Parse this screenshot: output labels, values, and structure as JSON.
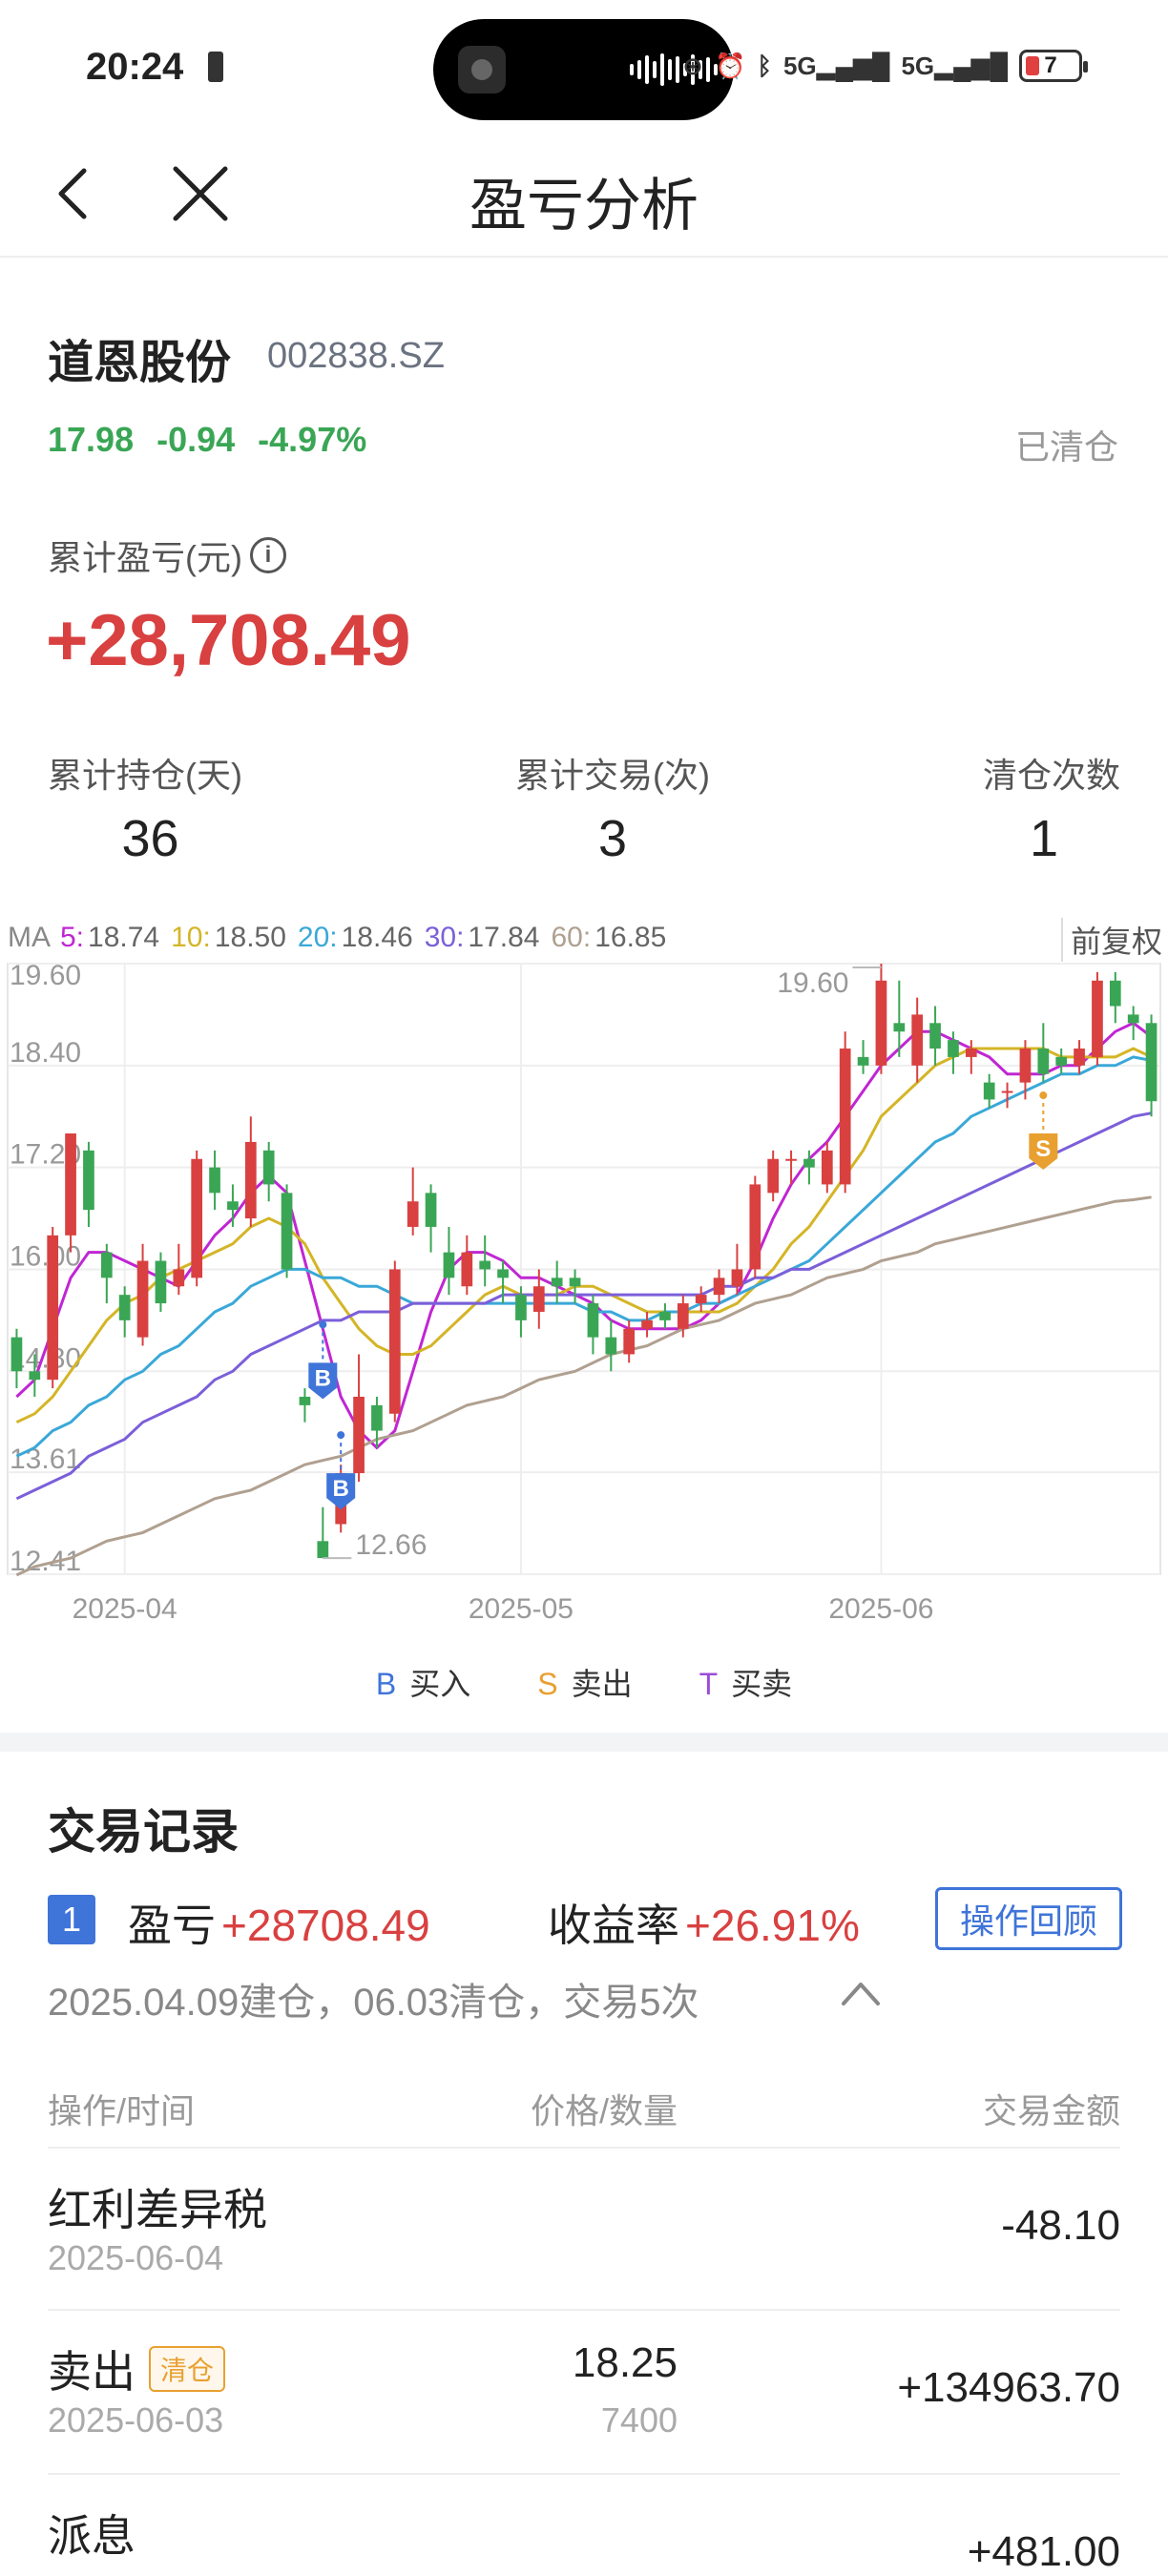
{
  "status": {
    "time": "20:24",
    "battery": "7",
    "signal1": "5G",
    "signal2": "5G"
  },
  "nav": {
    "title": "盈亏分析"
  },
  "stock": {
    "name": "道恩股份",
    "code": "002838.SZ",
    "price": "17.98",
    "change": "-0.94",
    "change_pct": "-4.97%",
    "state": "已清仓"
  },
  "summary": {
    "cum_pl_label": "累计盈亏(元)",
    "cum_pl_value": "+28,708.49",
    "hold_days_label": "累计持仓(天)",
    "hold_days": "36",
    "trades_label": "累计交易(次)",
    "trades": "3",
    "clear_label": "清仓次数",
    "clears": "1"
  },
  "chart_data": {
    "type": "candlestick",
    "adjust_label": "前复权",
    "ma_legend": [
      {
        "label": "MA",
        "value": ""
      },
      {
        "label": "5:",
        "value": "18.74",
        "color": "#c026d3"
      },
      {
        "label": "10:",
        "value": "18.50",
        "color": "#d4b526"
      },
      {
        "label": "20:",
        "value": "18.46",
        "color": "#3aa8d8"
      },
      {
        "label": "30:",
        "value": "17.84",
        "color": "#7b5fd9"
      },
      {
        "label": "60:",
        "value": "16.85",
        "color": "#b0a090"
      }
    ],
    "y_ticks": [
      "19.60",
      "18.40",
      "17.20",
      "16.00",
      "14.80",
      "13.61",
      "12.41"
    ],
    "ylim": [
      12.41,
      19.6
    ],
    "x_ticks": [
      "2025-04",
      "2025-05",
      "2025-06"
    ],
    "high_label": "19.60",
    "low_label": "12.66",
    "up_color": "#d94040",
    "down_color": "#3aa655",
    "candles": [
      [
        15.2,
        14.8,
        15.3,
        14.6
      ],
      [
        14.8,
        14.7,
        15.0,
        14.5
      ],
      [
        14.7,
        16.4,
        16.5,
        14.6
      ],
      [
        16.4,
        17.6,
        17.6,
        16.2
      ],
      [
        17.4,
        16.7,
        17.5,
        16.5
      ],
      [
        16.2,
        15.9,
        16.3,
        15.6
      ],
      [
        15.7,
        15.4,
        15.8,
        15.2
      ],
      [
        15.2,
        16.1,
        16.3,
        15.1
      ],
      [
        16.1,
        15.6,
        16.2,
        15.5
      ],
      [
        15.8,
        16.0,
        16.3,
        15.7
      ],
      [
        15.9,
        17.3,
        17.4,
        15.8
      ],
      [
        17.2,
        16.9,
        17.4,
        16.7
      ],
      [
        16.8,
        16.7,
        17.0,
        16.5
      ],
      [
        16.6,
        17.5,
        17.8,
        16.5
      ],
      [
        17.4,
        17.0,
        17.5,
        16.8
      ],
      [
        16.9,
        16.0,
        17.0,
        15.9
      ],
      [
        14.5,
        14.4,
        14.6,
        14.2
      ],
      [
        12.8,
        12.6,
        13.2,
        12.6
      ],
      [
        13.0,
        13.6,
        13.7,
        12.9
      ],
      [
        13.6,
        14.5,
        15.0,
        13.5
      ],
      [
        14.4,
        14.1,
        14.5,
        13.9
      ],
      [
        14.3,
        16.0,
        16.1,
        14.2
      ],
      [
        16.5,
        16.8,
        17.2,
        16.4
      ],
      [
        16.9,
        16.5,
        17.0,
        16.2
      ],
      [
        16.2,
        15.9,
        16.5,
        15.7
      ],
      [
        15.8,
        16.2,
        16.4,
        15.7
      ],
      [
        16.1,
        16.0,
        16.4,
        15.8
      ],
      [
        16.0,
        15.9,
        16.1,
        15.6
      ],
      [
        15.7,
        15.4,
        15.8,
        15.2
      ],
      [
        15.5,
        15.8,
        16.0,
        15.3
      ],
      [
        15.9,
        15.8,
        16.1,
        15.6
      ],
      [
        15.9,
        15.8,
        16.0,
        15.6
      ],
      [
        15.6,
        15.2,
        15.7,
        15.0
      ],
      [
        15.2,
        15.0,
        15.4,
        14.8
      ],
      [
        15.0,
        15.3,
        15.4,
        14.9
      ],
      [
        15.3,
        15.4,
        15.5,
        15.2
      ],
      [
        15.5,
        15.4,
        15.6,
        15.3
      ],
      [
        15.3,
        15.6,
        15.7,
        15.2
      ],
      [
        15.6,
        15.7,
        15.8,
        15.5
      ],
      [
        15.7,
        15.9,
        16.0,
        15.6
      ],
      [
        15.8,
        16.0,
        16.3,
        15.7
      ],
      [
        16.0,
        17.0,
        17.1,
        15.9
      ],
      [
        16.9,
        17.3,
        17.4,
        16.8
      ],
      [
        17.3,
        17.3,
        17.4,
        17.0
      ],
      [
        17.3,
        17.2,
        17.4,
        17.0
      ],
      [
        17.0,
        17.4,
        17.5,
        16.9
      ],
      [
        17.0,
        18.6,
        18.8,
        16.9
      ],
      [
        18.5,
        18.4,
        18.7,
        18.3
      ],
      [
        18.4,
        19.4,
        19.6,
        18.3
      ],
      [
        18.9,
        18.8,
        19.4,
        18.5
      ],
      [
        18.4,
        19.0,
        19.2,
        18.2
      ],
      [
        18.9,
        18.6,
        19.1,
        18.4
      ],
      [
        18.7,
        18.5,
        18.8,
        18.3
      ],
      [
        18.5,
        18.6,
        18.7,
        18.3
      ],
      [
        18.2,
        18.0,
        18.3,
        17.9
      ],
      [
        18.1,
        18.1,
        18.2,
        17.9
      ],
      [
        18.2,
        18.6,
        18.7,
        18.0
      ],
      [
        18.6,
        18.3,
        18.9,
        18.2
      ],
      [
        18.5,
        18.4,
        18.6,
        18.3
      ],
      [
        18.4,
        18.6,
        18.7,
        18.3
      ],
      [
        18.5,
        19.4,
        19.5,
        18.4
      ],
      [
        19.4,
        19.1,
        19.5,
        18.9
      ],
      [
        19.0,
        18.9,
        19.1,
        18.7
      ],
      [
        18.9,
        17.98,
        19.0,
        17.8
      ]
    ],
    "ma_series": [
      {
        "name": "5",
        "color": "#c026d3",
        "values": [
          14.5,
          14.7,
          15.3,
          15.9,
          16.2,
          16.2,
          16.1,
          16.0,
          15.9,
          15.8,
          16.1,
          16.4,
          16.6,
          16.9,
          17.1,
          16.9,
          16.1,
          15.3,
          14.5,
          14.1,
          13.9,
          14.1,
          14.8,
          15.5,
          16.0,
          16.2,
          16.2,
          16.1,
          15.9,
          15.9,
          15.8,
          15.7,
          15.6,
          15.4,
          15.3,
          15.3,
          15.3,
          15.3,
          15.4,
          15.6,
          15.7,
          16.1,
          16.6,
          17.0,
          17.3,
          17.5,
          17.8,
          18.1,
          18.4,
          18.6,
          18.8,
          18.8,
          18.7,
          18.6,
          18.5,
          18.3,
          18.3,
          18.3,
          18.4,
          18.4,
          18.6,
          18.8,
          18.9,
          18.74
        ]
      },
      {
        "name": "10",
        "color": "#d4b526",
        "values": [
          14.2,
          14.3,
          14.5,
          14.8,
          15.1,
          15.4,
          15.6,
          15.7,
          15.9,
          16.0,
          16.1,
          16.2,
          16.3,
          16.5,
          16.6,
          16.5,
          16.3,
          15.9,
          15.6,
          15.3,
          15.1,
          15.0,
          15.0,
          15.1,
          15.3,
          15.5,
          15.7,
          15.8,
          15.7,
          15.7,
          15.7,
          15.8,
          15.8,
          15.7,
          15.6,
          15.5,
          15.5,
          15.5,
          15.5,
          15.5,
          15.6,
          15.8,
          16.0,
          16.3,
          16.5,
          16.8,
          17.1,
          17.4,
          17.8,
          18.0,
          18.2,
          18.4,
          18.5,
          18.6,
          18.6,
          18.6,
          18.6,
          18.6,
          18.5,
          18.5,
          18.5,
          18.5,
          18.6,
          18.5
        ]
      },
      {
        "name": "20",
        "color": "#3aa8d8",
        "values": [
          13.8,
          13.9,
          14.1,
          14.2,
          14.4,
          14.5,
          14.7,
          14.8,
          15.0,
          15.1,
          15.3,
          15.5,
          15.6,
          15.8,
          15.9,
          16.0,
          16.0,
          15.9,
          15.9,
          15.8,
          15.8,
          15.7,
          15.6,
          15.6,
          15.6,
          15.6,
          15.6,
          15.6,
          15.6,
          15.6,
          15.6,
          15.6,
          15.5,
          15.5,
          15.4,
          15.4,
          15.5,
          15.5,
          15.6,
          15.6,
          15.7,
          15.8,
          15.9,
          16.0,
          16.1,
          16.3,
          16.5,
          16.7,
          16.9,
          17.1,
          17.3,
          17.5,
          17.6,
          17.8,
          17.9,
          18.0,
          18.1,
          18.2,
          18.3,
          18.3,
          18.4,
          18.4,
          18.5,
          18.46
        ]
      },
      {
        "name": "30",
        "color": "#7b5fd9",
        "values": [
          13.3,
          13.4,
          13.5,
          13.6,
          13.8,
          13.9,
          14.0,
          14.2,
          14.3,
          14.4,
          14.5,
          14.7,
          14.8,
          15.0,
          15.1,
          15.2,
          15.3,
          15.4,
          15.4,
          15.5,
          15.5,
          15.5,
          15.6,
          15.6,
          15.6,
          15.6,
          15.6,
          15.7,
          15.7,
          15.7,
          15.7,
          15.7,
          15.7,
          15.7,
          15.7,
          15.7,
          15.7,
          15.7,
          15.7,
          15.8,
          15.8,
          15.9,
          15.9,
          16.0,
          16.0,
          16.1,
          16.2,
          16.3,
          16.4,
          16.5,
          16.6,
          16.7,
          16.8,
          16.9,
          17.0,
          17.1,
          17.2,
          17.3,
          17.4,
          17.5,
          17.6,
          17.7,
          17.8,
          17.84
        ]
      },
      {
        "name": "60",
        "color": "#b0a090",
        "values": [
          12.4,
          12.5,
          12.55,
          12.6,
          12.7,
          12.8,
          12.85,
          12.9,
          13.0,
          13.1,
          13.2,
          13.3,
          13.35,
          13.4,
          13.5,
          13.6,
          13.7,
          13.75,
          13.8,
          13.9,
          14.0,
          14.05,
          14.1,
          14.2,
          14.3,
          14.4,
          14.45,
          14.5,
          14.6,
          14.7,
          14.75,
          14.8,
          14.9,
          15.0,
          15.05,
          15.1,
          15.2,
          15.3,
          15.35,
          15.4,
          15.5,
          15.6,
          15.65,
          15.7,
          15.8,
          15.9,
          15.95,
          16.0,
          16.1,
          16.15,
          16.2,
          16.3,
          16.35,
          16.4,
          16.45,
          16.5,
          16.55,
          16.6,
          16.65,
          16.7,
          16.75,
          16.8,
          16.82,
          16.85
        ]
      }
    ],
    "markers": [
      {
        "type": "B",
        "index": 17,
        "price": 14.9
      },
      {
        "type": "B",
        "index": 18,
        "price": 13.6
      },
      {
        "type": "S",
        "index": 57,
        "price": 17.6
      }
    ]
  },
  "legend": [
    {
      "key": "B",
      "label": "买入",
      "color": "#3f74d9"
    },
    {
      "key": "S",
      "label": "卖出",
      "color": "#e8a030"
    },
    {
      "key": "T",
      "label": "买卖",
      "color": "#9b4dd9"
    }
  ],
  "records": {
    "title": "交易记录",
    "index": "1",
    "pl_label": "盈亏",
    "pl_value": "+28708.49",
    "ret_label": "收益率",
    "ret_value": "+26.91%",
    "review_button": "操作回顾",
    "summary": "2025.04.09建仓，06.03清仓，交易5次",
    "col_op": "操作/时间",
    "col_price": "价格/数量",
    "col_amount": "交易金额",
    "rows": [
      {
        "name": "红利差异税",
        "date": "2025-06-04",
        "price": "",
        "qty": "",
        "amount": "-48.10",
        "tag": ""
      },
      {
        "name": "卖出",
        "date": "2025-06-03",
        "price": "18.25",
        "qty": "7400",
        "amount": "+134963.70",
        "tag": "清仓"
      },
      {
        "name": "派息",
        "date": "",
        "price": "",
        "qty": "",
        "amount": "+481.00",
        "tag": ""
      }
    ]
  }
}
